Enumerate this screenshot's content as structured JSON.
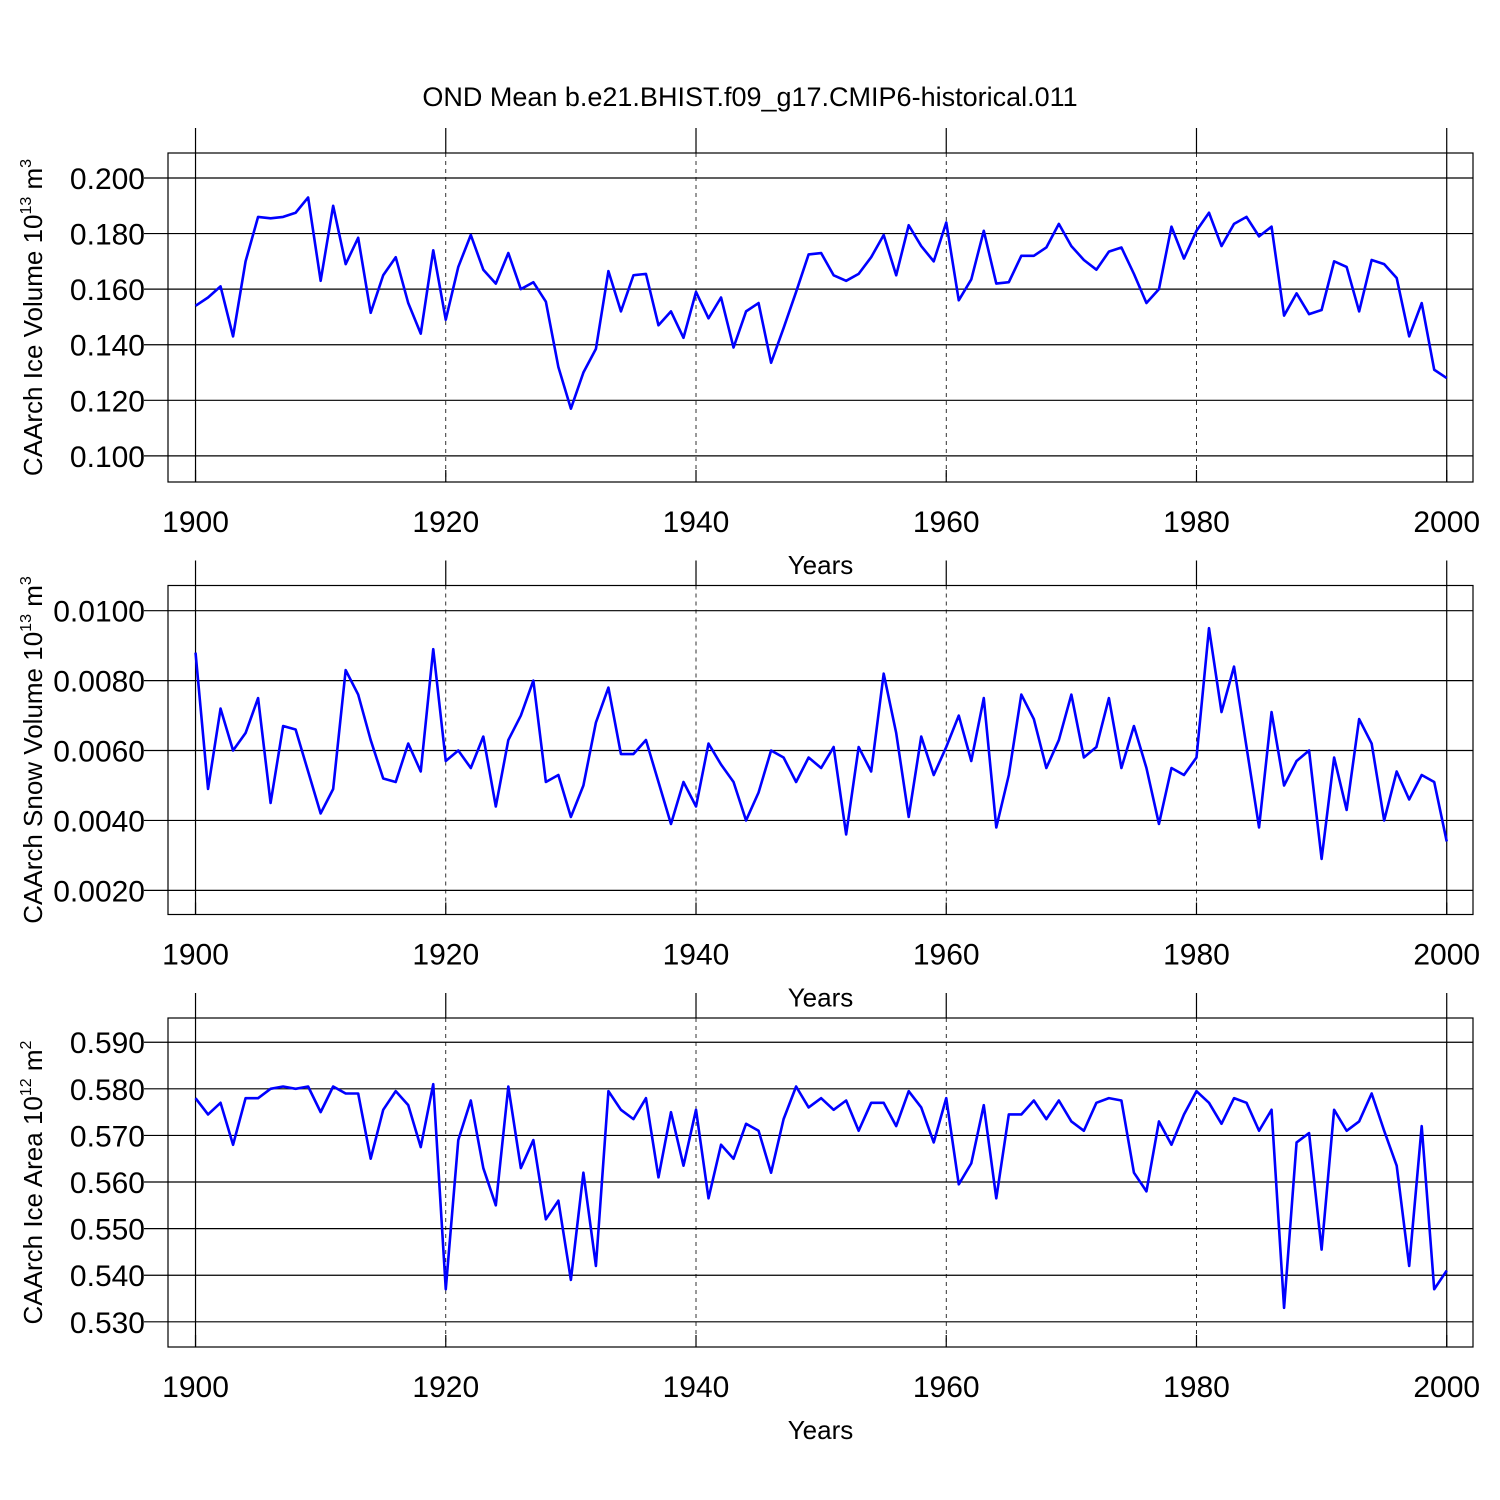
{
  "title": "OND Mean b.e21.BHIST.f09_g17.CMIP6-historical.011",
  "chart_data": [
    {
      "type": "line",
      "ylabel": [
        "CAArch Ice Volume 10",
        "13",
        " m",
        "3"
      ],
      "xlabel": "Years",
      "xlim": [
        1897.8,
        2002.1
      ],
      "ylim": [
        0.0906,
        0.209
      ],
      "xticks": [
        1900,
        1920,
        1940,
        1960,
        1980,
        2000
      ],
      "yticks": [
        {
          "value": 0.1,
          "label": "0.100"
        },
        {
          "value": 0.12,
          "label": "0.120"
        },
        {
          "value": 0.14,
          "label": "0.140"
        },
        {
          "value": 0.16,
          "label": "0.160"
        },
        {
          "value": 0.18,
          "label": "0.180"
        },
        {
          "value": 0.2,
          "label": "0.200"
        }
      ],
      "grid": "x",
      "x": [
        1900,
        1901,
        1902,
        1903,
        1904,
        1905,
        1906,
        1907,
        1908,
        1909,
        1910,
        1911,
        1912,
        1913,
        1914,
        1915,
        1916,
        1917,
        1918,
        1919,
        1920,
        1921,
        1922,
        1923,
        1924,
        1925,
        1926,
        1927,
        1928,
        1929,
        1930,
        1931,
        1932,
        1933,
        1934,
        1935,
        1936,
        1937,
        1938,
        1939,
        1940,
        1941,
        1942,
        1943,
        1944,
        1945,
        1946,
        1947,
        1948,
        1949,
        1950,
        1951,
        1952,
        1953,
        1954,
        1955,
        1956,
        1957,
        1958,
        1959,
        1960,
        1961,
        1962,
        1963,
        1964,
        1965,
        1966,
        1967,
        1968,
        1969,
        1970,
        1971,
        1972,
        1973,
        1974,
        1975,
        1976,
        1977,
        1978,
        1979,
        1980,
        1981,
        1982,
        1983,
        1984,
        1985,
        1986,
        1987,
        1988,
        1989,
        1990,
        1991,
        1992,
        1993,
        1994,
        1995,
        1996,
        1997,
        1998,
        1999,
        2000
      ],
      "series": [
        {
          "color": "#0000ff",
          "values": [
            0.154,
            0.157,
            0.161,
            0.143,
            0.17,
            0.186,
            0.1855,
            0.186,
            0.1875,
            0.193,
            0.163,
            0.19,
            0.169,
            0.1785,
            0.1515,
            0.165,
            0.1715,
            0.155,
            0.144,
            0.174,
            0.149,
            0.168,
            0.1795,
            0.167,
            0.162,
            0.173,
            0.16,
            0.1625,
            0.1555,
            0.132,
            0.117,
            0.13,
            0.1385,
            0.1665,
            0.152,
            0.165,
            0.1655,
            0.147,
            0.152,
            0.1425,
            0.159,
            0.1495,
            0.157,
            0.139,
            0.152,
            0.155,
            0.1335,
            0.146,
            0.159,
            0.1725,
            0.173,
            0.165,
            0.163,
            0.1655,
            0.1715,
            0.1795,
            0.165,
            0.183,
            0.1755,
            0.17,
            0.184,
            0.156,
            0.1635,
            0.181,
            0.162,
            0.1625,
            0.172,
            0.172,
            0.175,
            0.1835,
            0.1755,
            0.1705,
            0.167,
            0.1735,
            0.175,
            0.1655,
            0.155,
            0.16,
            0.1825,
            0.171,
            0.181,
            0.1875,
            0.1755,
            0.1835,
            0.186,
            0.179,
            0.1825,
            0.1505,
            0.1585,
            0.151,
            0.1525,
            0.17,
            0.168,
            0.152,
            0.1705,
            0.169,
            0.164,
            0.143,
            0.155,
            0.131,
            0.128
          ]
        }
      ]
    },
    {
      "type": "line",
      "ylabel": [
        "CAArch Snow Volume 10",
        "13",
        " m",
        "3"
      ],
      "xlabel": "Years",
      "xlim": [
        1897.8,
        2002.1
      ],
      "ylim": [
        0.00131,
        0.01072
      ],
      "xticks": [
        1900,
        1920,
        1940,
        1960,
        1980,
        2000
      ],
      "yticks": [
        {
          "value": 0.002,
          "label": "0.0020"
        },
        {
          "value": 0.004,
          "label": "0.0040"
        },
        {
          "value": 0.006,
          "label": "0.0060"
        },
        {
          "value": 0.008,
          "label": "0.0080"
        },
        {
          "value": 0.01,
          "label": "0.0100"
        }
      ],
      "grid": "x",
      "x": [
        1900,
        1901,
        1902,
        1903,
        1904,
        1905,
        1906,
        1907,
        1908,
        1909,
        1910,
        1911,
        1912,
        1913,
        1914,
        1915,
        1916,
        1917,
        1918,
        1919,
        1920,
        1921,
        1922,
        1923,
        1924,
        1925,
        1926,
        1927,
        1928,
        1929,
        1930,
        1931,
        1932,
        1933,
        1934,
        1935,
        1936,
        1937,
        1938,
        1939,
        1940,
        1941,
        1942,
        1943,
        1944,
        1945,
        1946,
        1947,
        1948,
        1949,
        1950,
        1951,
        1952,
        1953,
        1954,
        1955,
        1956,
        1957,
        1958,
        1959,
        1960,
        1961,
        1962,
        1963,
        1964,
        1965,
        1966,
        1967,
        1968,
        1969,
        1970,
        1971,
        1972,
        1973,
        1974,
        1975,
        1976,
        1977,
        1978,
        1979,
        1980,
        1981,
        1982,
        1983,
        1984,
        1985,
        1986,
        1987,
        1988,
        1989,
        1990,
        1991,
        1992,
        1993,
        1994,
        1995,
        1996,
        1997,
        1998,
        1999,
        2000
      ],
      "series": [
        {
          "color": "#0000ff",
          "values": [
            0.0088,
            0.0049,
            0.0072,
            0.006,
            0.0065,
            0.0075,
            0.0045,
            0.0067,
            0.0066,
            0.0054,
            0.0042,
            0.0049,
            0.0083,
            0.0076,
            0.0063,
            0.0052,
            0.0051,
            0.0062,
            0.0054,
            0.0089,
            0.0057,
            0.006,
            0.0055,
            0.0064,
            0.0044,
            0.0063,
            0.007,
            0.008,
            0.0051,
            0.0053,
            0.0041,
            0.005,
            0.0068,
            0.0078,
            0.0059,
            0.0059,
            0.0063,
            0.0051,
            0.0039,
            0.0051,
            0.0044,
            0.0062,
            0.0056,
            0.0051,
            0.004,
            0.0048,
            0.006,
            0.0058,
            0.0051,
            0.0058,
            0.0055,
            0.0061,
            0.0036,
            0.0061,
            0.0054,
            0.0082,
            0.0065,
            0.0041,
            0.0064,
            0.0053,
            0.0061,
            0.007,
            0.0057,
            0.0075,
            0.0038,
            0.0053,
            0.0076,
            0.0069,
            0.0055,
            0.0063,
            0.0076,
            0.0058,
            0.0061,
            0.0075,
            0.0055,
            0.0067,
            0.0055,
            0.0039,
            0.0055,
            0.0053,
            0.0058,
            0.0095,
            0.0071,
            0.0084,
            0.0061,
            0.0038,
            0.0071,
            0.005,
            0.0057,
            0.006,
            0.0029,
            0.0058,
            0.0043,
            0.0069,
            0.0062,
            0.004,
            0.0054,
            0.0046,
            0.0053,
            0.0051,
            0.0034
          ]
        }
      ]
    },
    {
      "type": "line",
      "ylabel": [
        "CAArch Ice Area 10",
        "12",
        " m",
        "2"
      ],
      "xlabel": "Years",
      "xlim": [
        1897.8,
        2002.1
      ],
      "ylim": [
        0.5246,
        0.5952
      ],
      "xticks": [
        1900,
        1920,
        1940,
        1960,
        1980,
        2000
      ],
      "yticks": [
        {
          "value": 0.53,
          "label": "0.530"
        },
        {
          "value": 0.54,
          "label": "0.540"
        },
        {
          "value": 0.55,
          "label": "0.550"
        },
        {
          "value": 0.56,
          "label": "0.560"
        },
        {
          "value": 0.57,
          "label": "0.570"
        },
        {
          "value": 0.58,
          "label": "0.580"
        },
        {
          "value": 0.59,
          "label": "0.590"
        }
      ],
      "grid": "x",
      "x": [
        1900,
        1901,
        1902,
        1903,
        1904,
        1905,
        1906,
        1907,
        1908,
        1909,
        1910,
        1911,
        1912,
        1913,
        1914,
        1915,
        1916,
        1917,
        1918,
        1919,
        1920,
        1921,
        1922,
        1923,
        1924,
        1925,
        1926,
        1927,
        1928,
        1929,
        1930,
        1931,
        1932,
        1933,
        1934,
        1935,
        1936,
        1937,
        1938,
        1939,
        1940,
        1941,
        1942,
        1943,
        1944,
        1945,
        1946,
        1947,
        1948,
        1949,
        1950,
        1951,
        1952,
        1953,
        1954,
        1955,
        1956,
        1957,
        1958,
        1959,
        1960,
        1961,
        1962,
        1963,
        1964,
        1965,
        1966,
        1967,
        1968,
        1969,
        1970,
        1971,
        1972,
        1973,
        1974,
        1975,
        1976,
        1977,
        1978,
        1979,
        1980,
        1981,
        1982,
        1983,
        1984,
        1985,
        1986,
        1987,
        1988,
        1989,
        1990,
        1991,
        1992,
        1993,
        1994,
        1995,
        1996,
        1997,
        1998,
        1999,
        2000
      ],
      "series": [
        {
          "color": "#0000ff",
          "values": [
            0.578,
            0.5745,
            0.577,
            0.568,
            0.578,
            0.578,
            0.58,
            0.5805,
            0.58,
            0.5805,
            0.575,
            0.5805,
            0.579,
            0.579,
            0.565,
            0.5755,
            0.5795,
            0.5765,
            0.5675,
            0.581,
            0.537,
            0.569,
            0.5775,
            0.563,
            0.555,
            0.5805,
            0.563,
            0.569,
            0.552,
            0.556,
            0.539,
            0.562,
            0.542,
            0.5795,
            0.5755,
            0.5735,
            0.578,
            0.561,
            0.575,
            0.5635,
            0.5755,
            0.5565,
            0.568,
            0.565,
            0.5725,
            0.571,
            0.562,
            0.5735,
            0.5805,
            0.576,
            0.578,
            0.5755,
            0.5775,
            0.571,
            0.577,
            0.577,
            0.572,
            0.5795,
            0.576,
            0.5685,
            0.578,
            0.5595,
            0.564,
            0.5765,
            0.5565,
            0.5745,
            0.5745,
            0.5775,
            0.5735,
            0.5775,
            0.573,
            0.571,
            0.577,
            0.578,
            0.5775,
            0.562,
            0.558,
            0.573,
            0.568,
            0.5745,
            0.5795,
            0.577,
            0.5725,
            0.578,
            0.577,
            0.571,
            0.5755,
            0.533,
            0.5685,
            0.5705,
            0.5455,
            0.5755,
            0.571,
            0.573,
            0.579,
            0.571,
            0.5635,
            0.542,
            0.572,
            0.537,
            0.541
          ]
        }
      ]
    }
  ]
}
